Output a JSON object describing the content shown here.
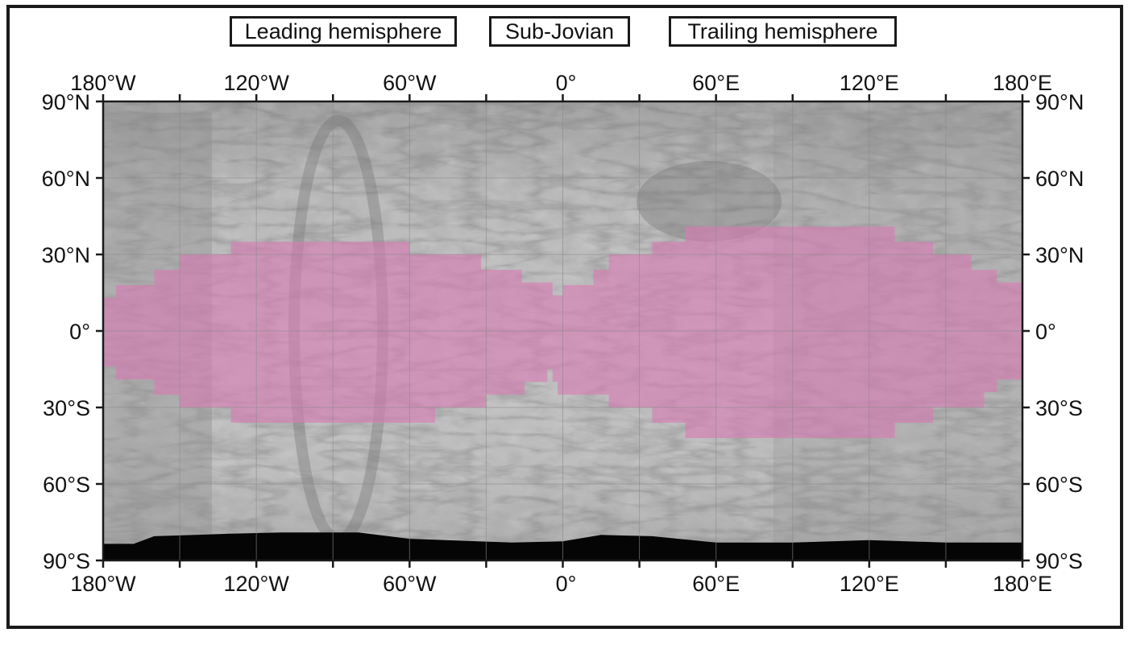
{
  "hemisphere_labels": {
    "leading": "Leading hemisphere",
    "sub_jovian": "Sub-Jovian",
    "trailing": "Trailing hemisphere"
  },
  "longitude_labels": [
    "180°W",
    "120°W",
    "60°W",
    "0°",
    "60°E",
    "120°E",
    "180°E"
  ],
  "latitude_labels": [
    "90°N",
    "60°N",
    "30°N",
    "0°",
    "30°S",
    "60°S",
    "90°S"
  ],
  "map": {
    "base_map": "grayscale global mosaic",
    "no_data_color": "#050505",
    "highlight_color": "#d97bb4",
    "grid_color": "#8a8a8a",
    "lon_range": [
      -180,
      180
    ],
    "lat_range": [
      -90,
      90
    ],
    "lon_tick_step": 30,
    "lat_tick_step": 30
  }
}
